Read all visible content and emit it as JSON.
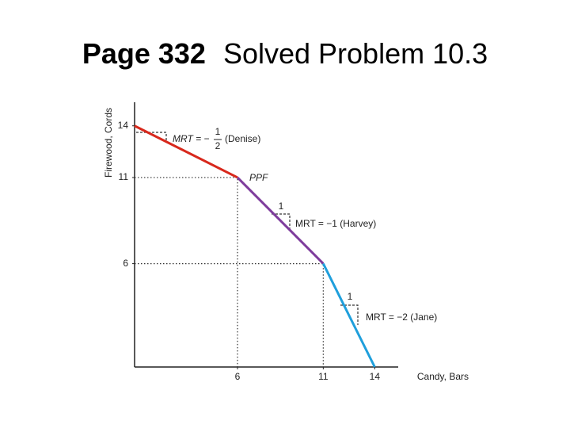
{
  "slide_title": {
    "bold": "Page 332",
    "text": "Solved Problem 10.3"
  },
  "chart_data": {
    "type": "line",
    "xlabel": "Candy, Bars",
    "ylabel": "Firewood, Cords",
    "x": [
      0,
      6,
      11,
      14
    ],
    "series": [
      {
        "name": "Denise",
        "color": "#d8281c",
        "values": [
          14,
          11,
          null,
          null
        ]
      },
      {
        "name": "Harvey",
        "color": "#7e3c9c",
        "values": [
          null,
          11,
          6,
          null
        ]
      },
      {
        "name": "Jane",
        "color": "#1f9fdc",
        "values": [
          null,
          null,
          6,
          0
        ]
      }
    ],
    "xlim": [
      0,
      15
    ],
    "ylim": [
      0,
      15
    ],
    "xticks": [
      6,
      11,
      14
    ],
    "yticks": [
      6,
      11,
      14
    ],
    "annotations": {
      "denise_mrt": "MRT = −",
      "denise_num": "1",
      "denise_den": "2",
      "denise_who": "(Denise)",
      "ppf": "PPF",
      "harvey_step": "1",
      "harvey_mrt": "MRT = −1 (Harvey)",
      "jane_step": "1",
      "jane_mrt": "MRT = −2 (Jane)"
    }
  }
}
